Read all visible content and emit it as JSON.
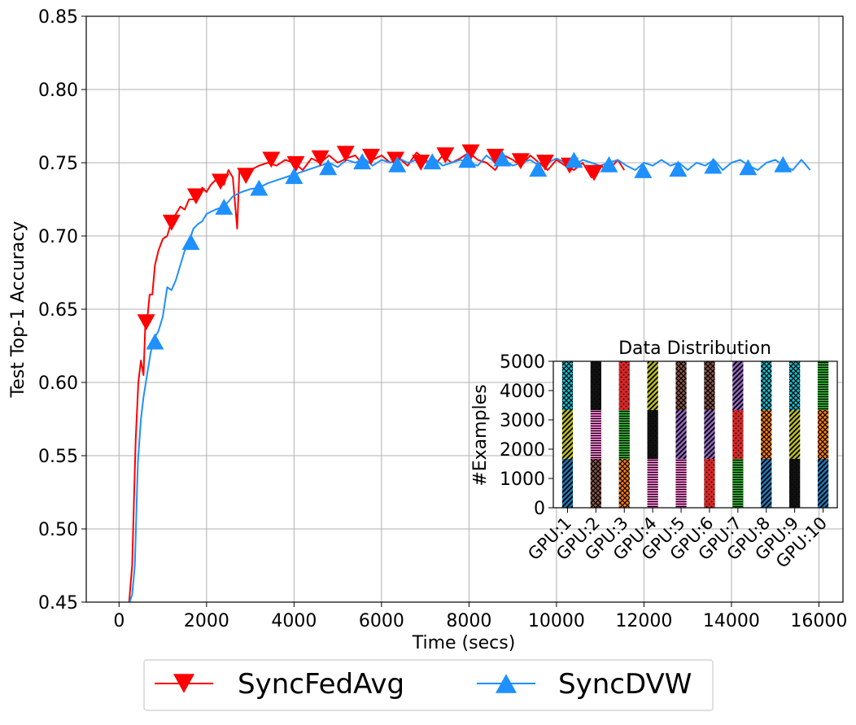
{
  "chart_data": [
    {
      "type": "line",
      "title": "",
      "xlabel": "Time (secs)",
      "ylabel": "Test Top-1 Accuracy",
      "xlim": [
        -750,
        16550
      ],
      "ylim": [
        0.45,
        0.85
      ],
      "xticks": [
        0,
        2000,
        4000,
        6000,
        8000,
        10000,
        12000,
        14000,
        16000
      ],
      "xtick_labels": [
        "0",
        "2000",
        "4000",
        "6000",
        "8000",
        "10000",
        "12000",
        "14000",
        "16000"
      ],
      "yticks": [
        0.45,
        0.5,
        0.55,
        0.6,
        0.65,
        0.7,
        0.75,
        0.8,
        0.85
      ],
      "ytick_labels": [
        "0.45",
        "0.50",
        "0.55",
        "0.60",
        "0.65",
        "0.70",
        "0.75",
        "0.80",
        "0.85"
      ],
      "grid": true,
      "legend_position": "bottom-center-outside",
      "series": [
        {
          "name": "SyncFedAvg",
          "color": "#ff0000",
          "marker": "triangle-down",
          "x": [
            230,
            300,
            380,
            440,
            500,
            560,
            600,
            650,
            700,
            760,
            820,
            900,
            1000,
            1100,
            1200,
            1300,
            1400,
            1500,
            1600,
            1700,
            1800,
            1900,
            2000,
            2100,
            2200,
            2300,
            2400,
            2500,
            2600,
            2700,
            2750,
            2800,
            2900,
            3000,
            3200,
            3400,
            3600,
            3800,
            4000,
            4200,
            4400,
            4600,
            4800,
            5000,
            5200,
            5400,
            5600,
            5800,
            6000,
            6200,
            6400,
            6600,
            6800,
            7000,
            7200,
            7400,
            7600,
            7800,
            8000,
            8200,
            8400,
            8600,
            8800,
            9000,
            9200,
            9400,
            9600,
            9800,
            10000,
            10200,
            10400,
            10600,
            10800,
            11000,
            11200,
            11400,
            11550
          ],
          "y": [
            0.45,
            0.475,
            0.56,
            0.6,
            0.615,
            0.605,
            0.64,
            0.645,
            0.66,
            0.66,
            0.68,
            0.69,
            0.698,
            0.7,
            0.71,
            0.715,
            0.72,
            0.718,
            0.725,
            0.725,
            0.727,
            0.733,
            0.73,
            0.735,
            0.738,
            0.738,
            0.735,
            0.745,
            0.74,
            0.705,
            0.745,
            0.745,
            0.74,
            0.745,
            0.748,
            0.75,
            0.748,
            0.752,
            0.75,
            0.745,
            0.753,
            0.75,
            0.755,
            0.75,
            0.753,
            0.755,
            0.748,
            0.752,
            0.755,
            0.75,
            0.753,
            0.748,
            0.757,
            0.752,
            0.748,
            0.755,
            0.75,
            0.753,
            0.757,
            0.752,
            0.75,
            0.745,
            0.755,
            0.752,
            0.748,
            0.755,
            0.75,
            0.745,
            0.752,
            0.748,
            0.745,
            0.75,
            0.74,
            0.748,
            0.745,
            0.752,
            0.745
          ],
          "marker_x": [
            620,
            1200,
            1760,
            2320,
            2900,
            3480,
            4040,
            4600,
            5180,
            5760,
            6320,
            6900,
            7460,
            8040,
            8600,
            9180,
            9740,
            10300,
            10860
          ],
          "marker_y": [
            0.641,
            0.709,
            0.727,
            0.737,
            0.741,
            0.752,
            0.749,
            0.753,
            0.756,
            0.754,
            0.752,
            0.75,
            0.755,
            0.757,
            0.754,
            0.751,
            0.75,
            0.748,
            0.743
          ]
        },
        {
          "name": "SyncDVW",
          "color": "#1e90ff",
          "marker": "triangle-up",
          "x": [
            240,
            300,
            360,
            430,
            500,
            560,
            640,
            720,
            800,
            900,
            1000,
            1100,
            1200,
            1300,
            1400,
            1500,
            1600,
            1700,
            1800,
            1900,
            2000,
            2200,
            2400,
            2600,
            2800,
            3000,
            3200,
            3400,
            3600,
            3800,
            4000,
            4200,
            4400,
            4600,
            4800,
            5000,
            5200,
            5400,
            5600,
            5800,
            6000,
            6200,
            6400,
            6600,
            6800,
            7000,
            7200,
            7400,
            7600,
            7800,
            8000,
            8200,
            8400,
            8600,
            8800,
            9000,
            9200,
            9400,
            9600,
            9800,
            10000,
            10200,
            10400,
            10600,
            10800,
            11000,
            11200,
            11400,
            11600,
            11800,
            12000,
            12200,
            12400,
            12600,
            12800,
            13000,
            13200,
            13400,
            13600,
            13800,
            14000,
            14200,
            14400,
            14600,
            14800,
            15000,
            15200,
            15400,
            15600,
            15800
          ],
          "y": [
            0.45,
            0.455,
            0.475,
            0.545,
            0.575,
            0.59,
            0.605,
            0.62,
            0.63,
            0.635,
            0.645,
            0.665,
            0.663,
            0.67,
            0.68,
            0.69,
            0.696,
            0.705,
            0.708,
            0.71,
            0.715,
            0.718,
            0.72,
            0.727,
            0.73,
            0.732,
            0.733,
            0.736,
            0.738,
            0.74,
            0.742,
            0.744,
            0.746,
            0.748,
            0.75,
            0.747,
            0.752,
            0.75,
            0.753,
            0.748,
            0.752,
            0.75,
            0.753,
            0.75,
            0.752,
            0.75,
            0.753,
            0.748,
            0.75,
            0.752,
            0.75,
            0.748,
            0.755,
            0.75,
            0.752,
            0.748,
            0.75,
            0.752,
            0.748,
            0.75,
            0.753,
            0.75,
            0.748,
            0.752,
            0.75,
            0.748,
            0.75,
            0.752,
            0.748,
            0.745,
            0.75,
            0.748,
            0.752,
            0.748,
            0.75,
            0.745,
            0.75,
            0.748,
            0.752,
            0.745,
            0.75,
            0.752,
            0.748,
            0.745,
            0.75,
            0.752,
            0.748,
            0.745,
            0.752,
            0.745
          ],
          "marker_x": [
            820,
            1640,
            2400,
            3200,
            4000,
            4780,
            5560,
            6360,
            7160,
            7960,
            8760,
            9580,
            10400,
            11200,
            11980,
            12780,
            13580,
            14380,
            15180
          ],
          "marker_y": [
            0.628,
            0.696,
            0.72,
            0.733,
            0.741,
            0.747,
            0.751,
            0.749,
            0.751,
            0.752,
            0.753,
            0.746,
            0.752,
            0.749,
            0.745,
            0.746,
            0.748,
            0.747,
            0.749
          ]
        }
      ]
    },
    {
      "type": "bar",
      "stacked": true,
      "title": "Data Distribution",
      "xlabel": "",
      "ylabel": "#Examples",
      "ylim": [
        0,
        5000
      ],
      "yticks": [
        0,
        1000,
        2000,
        3000,
        4000,
        5000
      ],
      "ytick_labels": [
        "0",
        "1000",
        "2000",
        "3000",
        "4000",
        "5000"
      ],
      "categories": [
        "GPU:1",
        "GPU:2",
        "GPU:3",
        "GPU:4",
        "GPU:5",
        "GPU:6",
        "GPU:7",
        "GPU:8",
        "GPU:9",
        "GPU:10"
      ],
      "class_colors": [
        "#1f77b4",
        "#ff7f0e",
        "#2ca02c",
        "#d62728",
        "#9467bd",
        "#8c564b",
        "#e377c2",
        "#111111",
        "#bcbd22",
        "#17becf"
      ],
      "segment_values": [
        1667,
        1667,
        1666
      ],
      "segment_classes": [
        [
          0,
          8,
          9
        ],
        [
          5,
          6,
          7
        ],
        [
          1,
          2,
          3
        ],
        [
          6,
          7,
          8
        ],
        [
          6,
          4,
          5
        ],
        [
          3,
          4,
          5
        ],
        [
          2,
          3,
          4
        ],
        [
          0,
          1,
          9
        ],
        [
          7,
          8,
          9
        ],
        [
          0,
          1,
          2
        ]
      ]
    }
  ],
  "legend": {
    "items": [
      {
        "label": "SyncFedAvg",
        "color": "#ff0000"
      },
      {
        "label": "SyncDVW",
        "color": "#1e90ff"
      }
    ]
  }
}
